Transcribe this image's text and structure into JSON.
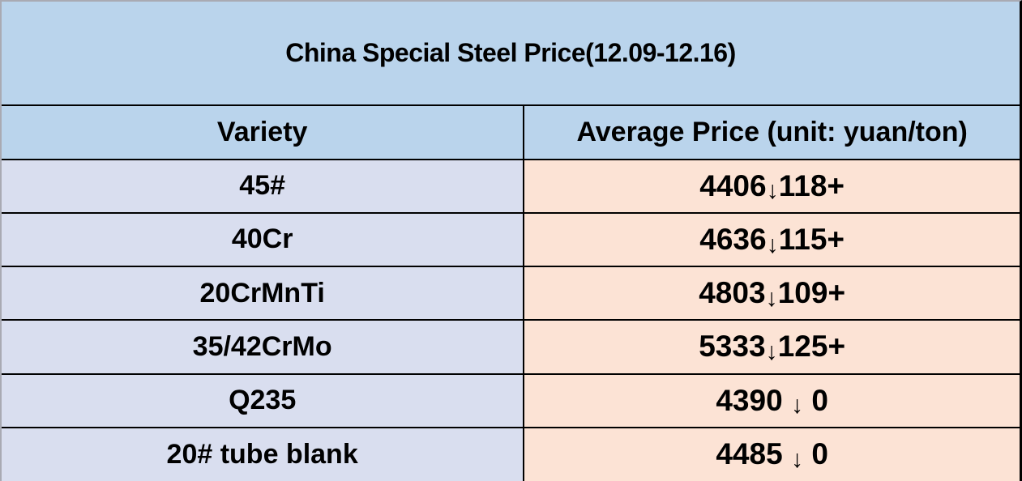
{
  "chart_data": {
    "type": "table",
    "title": "China Special Steel Price(12.09-12.16)",
    "columns": [
      "Variety",
      "Average Price (unit: yuan/ton)"
    ],
    "rows": [
      {
        "variety": "45#",
        "price": "4406",
        "arrow": "↓",
        "change": "118+",
        "price_value": 4406,
        "change_value": 118,
        "direction": "down"
      },
      {
        "variety": "40Cr",
        "price": "4636",
        "arrow": "↓",
        "change": "115+",
        "price_value": 4636,
        "change_value": 115,
        "direction": "down"
      },
      {
        "variety": "20CrMnTi",
        "price": "4803",
        "arrow": "↓",
        "change": "109+",
        "price_value": 4803,
        "change_value": 109,
        "direction": "down"
      },
      {
        "variety": "35/42CrMo",
        "price": "5333",
        "arrow": "↓",
        "change": "125+",
        "price_value": 5333,
        "change_value": 125,
        "direction": "down"
      },
      {
        "variety": "Q235",
        "price": "4390 ",
        "arrow": "↓",
        "change": " 0",
        "price_value": 4390,
        "change_value": 0,
        "direction": "down"
      },
      {
        "variety": "20# tube blank",
        "price": "4485 ",
        "arrow": "↓",
        "change": " 0",
        "price_value": 4485,
        "change_value": 0,
        "direction": "down"
      }
    ],
    "colors": {
      "header_bg": "#bad4ec",
      "variety_bg": "#d9deef",
      "price_bg": "#fce3d5",
      "border": "#000000",
      "outer_gridline": "#a9aab3",
      "text": "#000000"
    },
    "layout": {
      "legend_position": "none",
      "grid": "cell-borders"
    }
  }
}
